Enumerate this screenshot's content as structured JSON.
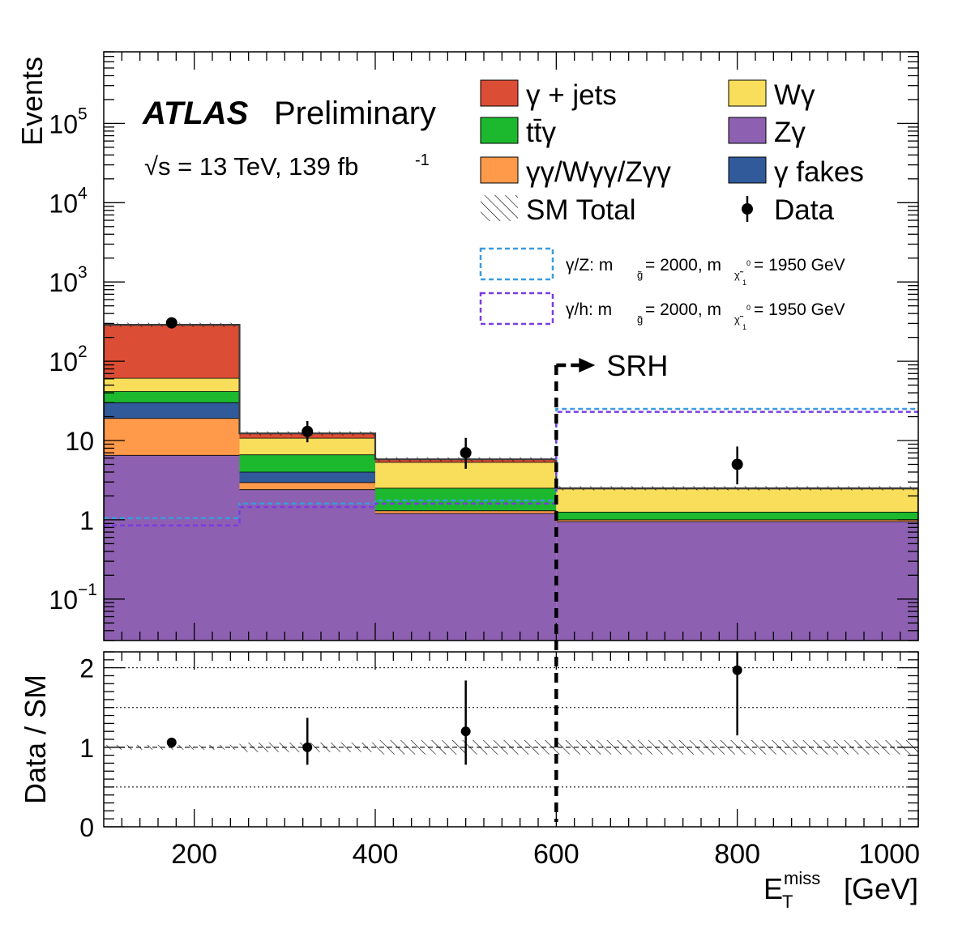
{
  "chart_data": {
    "type": "bar",
    "subtype": "stacked-histogram-with-ratio-panel",
    "title": "ATLAS Preliminary",
    "experiment": "ATLAS",
    "status": "Preliminary",
    "energy_label": "√s = 13 TeV, 139 fb",
    "energy_sup": "-1",
    "xlabel": "E",
    "xlabel_sup": "miss",
    "xlabel_sub": "T",
    "xlabel_unit": "[GeV]",
    "ylabel": "Events",
    "ratio_ylabel": "Data / SM",
    "yscale": "log",
    "ylim": [
      0.03,
      800000
    ],
    "xlim": [
      100,
      1000
    ],
    "ratio_ylim": [
      0,
      2.2
    ],
    "x_ticks": [
      "200",
      "400",
      "600",
      "800",
      "1000"
    ],
    "y_ticks": [
      {
        "base": "10",
        "exp": "−1",
        "value": 0.1
      },
      {
        "base": "1",
        "exp": "",
        "value": 1
      },
      {
        "base": "10",
        "exp": "",
        "value": 10
      },
      {
        "base": "10",
        "exp": "2",
        "value": 100
      },
      {
        "base": "10",
        "exp": "3",
        "value": 1000
      },
      {
        "base": "10",
        "exp": "4",
        "value": 10000
      },
      {
        "base": "10",
        "exp": "5",
        "value": 100000
      }
    ],
    "ratio_ticks": [
      "0",
      "1",
      "2"
    ],
    "bin_edges": [
      100,
      250,
      400,
      600,
      1000
    ],
    "series": [
      {
        "name": "Zγ",
        "color": "#8d60b1",
        "values": [
          6.5,
          2.4,
          1.2,
          0.95
        ]
      },
      {
        "name": "γγ/Wγγ/Zγγ",
        "color": "#fe9a4a",
        "values": [
          12.5,
          0.55,
          0.1,
          0.05
        ]
      },
      {
        "name": "γ fakes",
        "color": "#315a9b",
        "values": [
          11.0,
          1.05,
          0.0,
          0.0
        ]
      },
      {
        "name": "tt̄γ",
        "color": "#1cb92f",
        "values": [
          11.5,
          2.6,
          1.2,
          0.25
        ]
      },
      {
        "name": "Wγ",
        "color": "#f9de5c",
        "values": [
          19.5,
          4.1,
          2.8,
          1.2
        ]
      },
      {
        "name": "γ + jets",
        "color": "#dc4d35",
        "values": [
          227,
          1.6,
          0.5,
          0.05
        ]
      }
    ],
    "sm_total": {
      "name": "SM Total",
      "values": [
        288,
        12.3,
        5.8,
        2.5
      ]
    },
    "data": {
      "name": "Data",
      "x": [
        175,
        325,
        500,
        800
      ],
      "values": [
        305,
        13,
        7,
        5
      ],
      "err_low": [
        17,
        3.5,
        2.6,
        2.2
      ],
      "err_high": [
        18,
        4.6,
        3.8,
        3.4
      ]
    },
    "signals": [
      {
        "name": "γ/Z",
        "color": "#3a9bde",
        "label": "γ/Z: m",
        "mass_sub": "g̃",
        "mass_label": " = 2000, m",
        "mass2_sub": "χ̃",
        "mass2_sub2": "1",
        "mass2_sup": "0",
        "tail": " = 1950 GeV",
        "values": [
          1.05,
          1.6,
          1.75,
          25
        ]
      },
      {
        "name": "γ/h",
        "color": "#7b3ce0",
        "label": "γ/h: m",
        "mass_sub": "g̃",
        "mass_label": " = 2000, m",
        "mass2_sub": "χ̃",
        "mass2_sub2": "1",
        "mass2_sup": "0",
        "tail": " = 1950 GeV",
        "values": [
          0.85,
          1.45,
          1.6,
          23
        ]
      }
    ],
    "ratio": {
      "x": [
        175,
        325,
        500,
        800
      ],
      "values": [
        1.06,
        1.0,
        1.2,
        1.97
      ],
      "err_low": [
        0.04,
        0.22,
        0.42,
        0.82
      ],
      "err_high": [
        0.04,
        0.37,
        0.64,
        1.3
      ]
    },
    "signal_region": {
      "label": "SRH",
      "x": 600
    },
    "legend": {
      "placement": "top-right",
      "entries": [
        {
          "label": "γ + jets",
          "type": "fill",
          "color": "#dc4d35"
        },
        {
          "label": "Wγ",
          "type": "fill",
          "color": "#f9de5c"
        },
        {
          "label": "tt̄γ",
          "type": "fill",
          "color": "#1cb92f"
        },
        {
          "label": "Zγ",
          "type": "fill",
          "color": "#8d60b1"
        },
        {
          "label": "γγ/Wγγ/Zγγ",
          "type": "fill",
          "color": "#fe9a4a"
        },
        {
          "label": "γ fakes",
          "type": "fill",
          "color": "#315a9b"
        },
        {
          "label": "SM Total",
          "type": "hatch",
          "color": "#000000"
        },
        {
          "label": "Data",
          "type": "marker",
          "color": "#000000"
        }
      ]
    }
  }
}
